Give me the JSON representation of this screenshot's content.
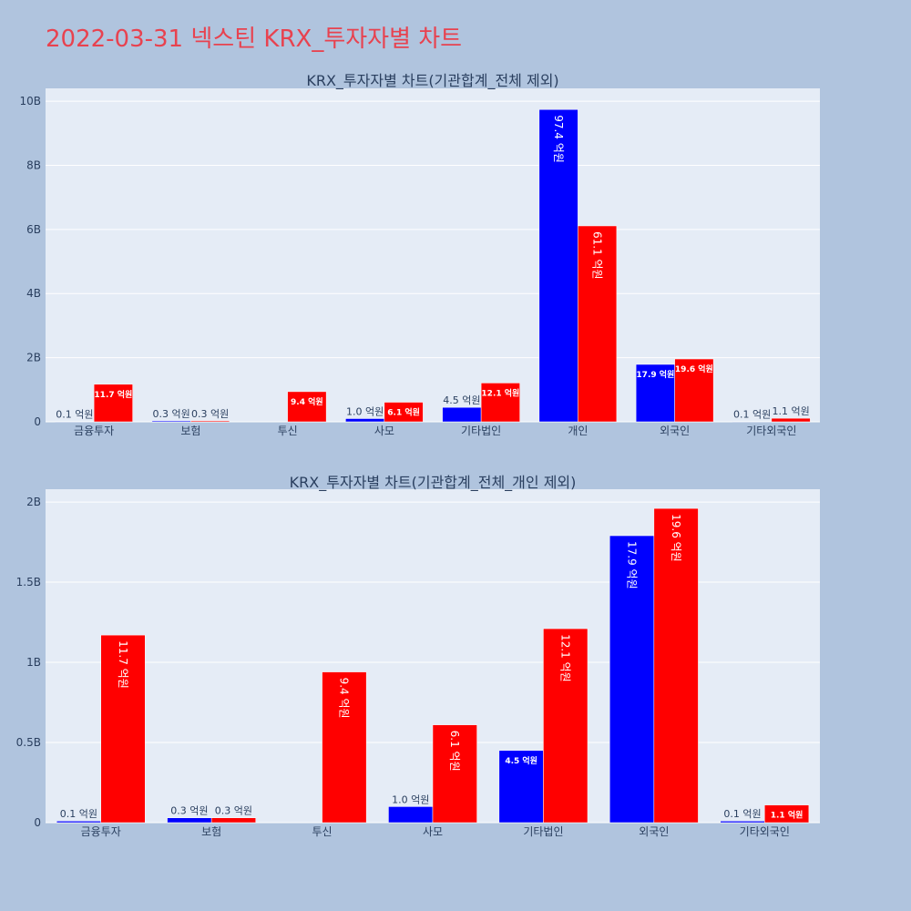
{
  "title": "2022-03-31 넥스틴 KRX_투자자별 차트",
  "colors": {
    "buy": "#0000ff",
    "sell": "#ff0000",
    "plot_bg": "#e5ecf6",
    "page_bg": "#b0c4de",
    "title": "#e8424f"
  },
  "chart_data": [
    {
      "type": "bar",
      "title": "KRX_투자자별 차트(기관합계_전체 제외)",
      "categories": [
        "금융투자",
        "보험",
        "투신",
        "사모",
        "기타법인",
        "개인",
        "외국인",
        "기타외국인"
      ],
      "series": [
        {
          "color": "#0000ff",
          "values": [
            10000000,
            30000000,
            0,
            100000000,
            450000000,
            9740000000,
            1790000000,
            10000000
          ],
          "labels": [
            "0.1 억원",
            "0.3 억원",
            "",
            "1.0 억원",
            "4.5 억원",
            "97.4 억원",
            "17.9 억원",
            "0.1 억원"
          ]
        },
        {
          "color": "#ff0000",
          "values": [
            1170000000,
            30000000,
            940000000,
            610000000,
            1210000000,
            6110000000,
            1960000000,
            110000000
          ],
          "labels": [
            "11.7 억원",
            "0.3 억원",
            "9.4 억원",
            "6.1 억원",
            "12.1 억원",
            "61.1 억원",
            "19.6 억원",
            "1.1 억원"
          ]
        }
      ],
      "ylim": [
        0,
        10400000000
      ],
      "yticks": [
        0,
        2000000000,
        4000000000,
        6000000000,
        8000000000,
        10000000000
      ],
      "ytick_labels": [
        "0",
        "2B",
        "4B",
        "6B",
        "8B",
        "10B"
      ],
      "grid": true
    },
    {
      "type": "bar",
      "title": "KRX_투자자별 차트(기관합계_전체_개인 제외)",
      "categories": [
        "금융투자",
        "보험",
        "투신",
        "사모",
        "기타법인",
        "외국인",
        "기타외국인"
      ],
      "series": [
        {
          "color": "#0000ff",
          "values": [
            10000000,
            30000000,
            0,
            100000000,
            450000000,
            1790000000,
            10000000
          ],
          "labels": [
            "0.1 억원",
            "0.3 억원",
            "",
            "1.0 억원",
            "4.5 억원",
            "17.9 억원",
            "0.1 억원"
          ]
        },
        {
          "color": "#ff0000",
          "values": [
            1170000000,
            30000000,
            940000000,
            610000000,
            1210000000,
            1960000000,
            110000000
          ],
          "labels": [
            "11.7 억원",
            "0.3 억원",
            "9.4 억원",
            "6.1 억원",
            "12.1 억원",
            "19.6 억원",
            "1.1 억원"
          ]
        }
      ],
      "ylim": [
        0,
        2080000000
      ],
      "yticks": [
        0,
        500000000,
        1000000000,
        1500000000,
        2000000000
      ],
      "ytick_labels": [
        "0",
        "0.5B",
        "1B",
        "1.5B",
        "2B"
      ],
      "grid": true
    }
  ]
}
